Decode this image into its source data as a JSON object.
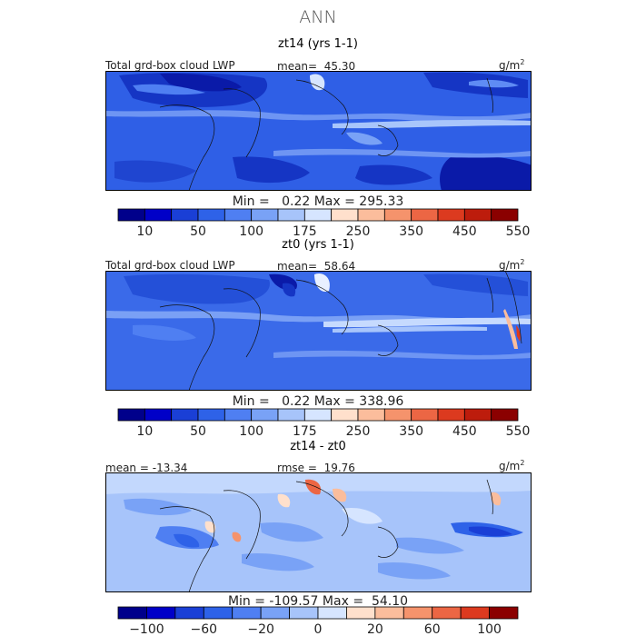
{
  "header": {
    "title": "ANN"
  },
  "chart_data": [
    {
      "type": "heatmap",
      "title": "zt14 (yrs 1-1)",
      "variable": "Total grd-box cloud LWP",
      "mean_label": "mean=",
      "mean": "45.30",
      "units": "g/m",
      "units_sup": "2",
      "min_label": "Min =",
      "min": "0.22",
      "max_label": "Max =",
      "max": "295.33",
      "colorbar": {
        "levels": [
          10,
          25,
          50,
          75,
          100,
          125,
          175,
          200,
          250,
          300,
          350,
          400,
          450,
          500,
          550
        ],
        "tick_labels": [
          "10",
          "50",
          "100",
          "175",
          "250",
          "350",
          "450",
          "550"
        ],
        "colors": [
          "#00008b",
          "#0000c8",
          "#1a3fd6",
          "#2e62e8",
          "#4f7ff2",
          "#79a2f6",
          "#a7c4fa",
          "#d6e5ff",
          "#ffe0cc",
          "#fbbd9c",
          "#f5936c",
          "#ec6644",
          "#dc3a1f",
          "#bd1c0c",
          "#8b0000"
        ]
      }
    },
    {
      "type": "heatmap",
      "title": "zt0 (yrs 1-1)",
      "variable": "Total grd-box cloud LWP",
      "mean_label": "mean=",
      "mean": "58.64",
      "units": "g/m",
      "units_sup": "2",
      "min_label": "Min =",
      "min": "0.22",
      "max_label": "Max =",
      "max": "338.96",
      "colorbar": {
        "levels": [
          10,
          25,
          50,
          75,
          100,
          125,
          175,
          200,
          250,
          300,
          350,
          400,
          450,
          500,
          550
        ],
        "tick_labels": [
          "10",
          "50",
          "100",
          "175",
          "250",
          "350",
          "450",
          "550"
        ],
        "colors": [
          "#00008b",
          "#0000c8",
          "#1a3fd6",
          "#2e62e8",
          "#4f7ff2",
          "#79a2f6",
          "#a7c4fa",
          "#d6e5ff",
          "#ffe0cc",
          "#fbbd9c",
          "#f5936c",
          "#ec6644",
          "#dc3a1f",
          "#bd1c0c",
          "#8b0000"
        ]
      }
    },
    {
      "type": "heatmap",
      "title": "zt14 - zt0",
      "mean_label": "mean =",
      "mean": "-13.34",
      "rmse_label": "rmse =",
      "rmse": "19.76",
      "units": "g/m",
      "units_sup": "2",
      "min_label": "Min =",
      "min": "-109.57",
      "max_label": "Max =",
      "max": "54.10",
      "colorbar": {
        "levels": [
          -100,
          -80,
          -60,
          -40,
          -20,
          -10,
          0,
          10,
          20,
          40,
          60,
          80,
          100
        ],
        "tick_labels": [
          "-100",
          "-60",
          "-20",
          "0",
          "20",
          "60",
          "100"
        ],
        "colors": [
          "#00008b",
          "#0000c8",
          "#1a3fd6",
          "#2e62e8",
          "#4f7ff2",
          "#79a2f6",
          "#a7c4fa",
          "#d6e5ff",
          "#ffe0cc",
          "#fbbd9c",
          "#f5936c",
          "#ec6644",
          "#dc3a1f",
          "#8b0000"
        ]
      }
    }
  ]
}
